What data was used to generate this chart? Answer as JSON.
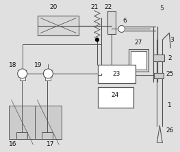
{
  "bg_color": "#e0e0e0",
  "line_color": "#555555",
  "label_color": "#111111",
  "figsize": [
    2.63,
    2.23
  ],
  "dpi": 100,
  "lw_main": 0.9,
  "lw_double": 1.4
}
